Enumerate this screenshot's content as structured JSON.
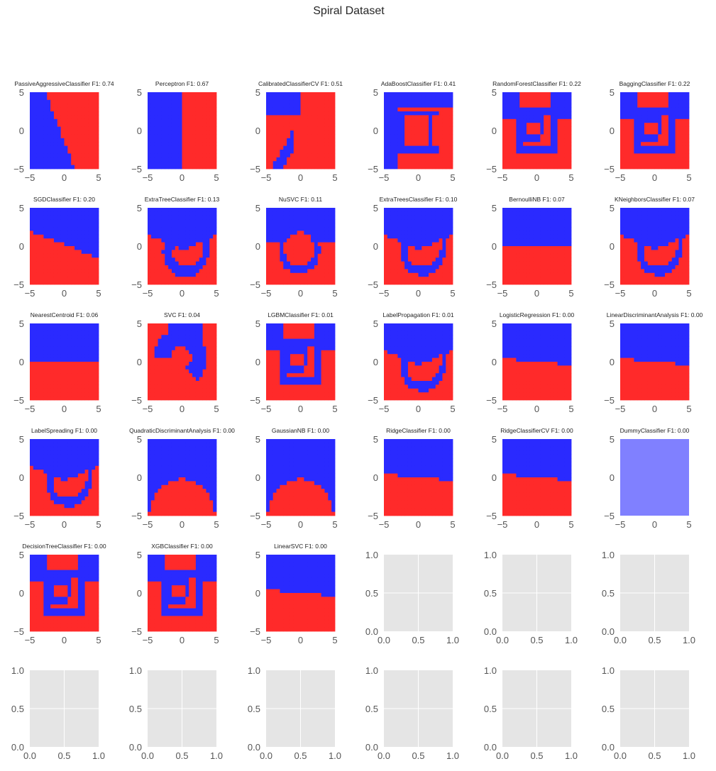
{
  "figure": {
    "title": "Spiral Dataset"
  },
  "colors": {
    "class_blue": "#2a2aff",
    "class_red": "#ff2a2a",
    "blend": "#8080ff",
    "empty_bg": "#e5e5e5",
    "grid": "#ffffff",
    "tick_text": "#555555",
    "title_text": "#222222"
  },
  "chart_data": [
    {
      "type": "heatmap",
      "title": "PassiveAggressiveClassifier F1: 0.74",
      "pattern": "diag_steep",
      "xticks": [
        "-5",
        "0",
        "5"
      ],
      "yticks": [
        "-5",
        "0",
        "5"
      ],
      "xlim": [
        -5,
        5
      ],
      "ylim": [
        -5,
        5
      ]
    },
    {
      "type": "heatmap",
      "title": "Perceptron F1: 0.67",
      "pattern": "vsplit",
      "xticks": [
        "-5",
        "0",
        "5"
      ],
      "yticks": [
        "-5",
        "0",
        "5"
      ],
      "xlim": [
        -5,
        5
      ],
      "ylim": [
        -5,
        5
      ]
    },
    {
      "type": "heatmap",
      "title": "CalibratedClassifierCV F1: 0.51",
      "pattern": "calibrated",
      "xticks": [
        "-5",
        "0",
        "5"
      ],
      "yticks": [
        "-5",
        "0",
        "5"
      ],
      "xlim": [
        -5,
        5
      ],
      "ylim": [
        -5,
        5
      ]
    },
    {
      "type": "heatmap",
      "title": "AdaBoostClassifier F1: 0.41",
      "pattern": "adaboost",
      "xticks": [
        "-5",
        "0",
        "5"
      ],
      "yticks": [
        "-5",
        "0",
        "5"
      ],
      "xlim": [
        -5,
        5
      ],
      "ylim": [
        -5,
        5
      ]
    },
    {
      "type": "heatmap",
      "title": "RandomForestClassifier F1: 0.22",
      "pattern": "blocky_spiral",
      "xticks": [
        "-5",
        "0",
        "5"
      ],
      "yticks": [
        "-5",
        "0",
        "5"
      ],
      "xlim": [
        -5,
        5
      ],
      "ylim": [
        -5,
        5
      ]
    },
    {
      "type": "heatmap",
      "title": "BaggingClassifier F1: 0.22",
      "pattern": "blocky_spiral",
      "xticks": [
        "-5",
        "0",
        "5"
      ],
      "yticks": [
        "-5",
        "0",
        "5"
      ],
      "xlim": [
        -5,
        5
      ],
      "ylim": [
        -5,
        5
      ]
    },
    {
      "type": "heatmap",
      "title": "SGDClassifier F1: 0.20",
      "pattern": "diag_shallow",
      "xticks": [
        "-5",
        "0",
        "5"
      ],
      "yticks": [
        "-5",
        "0",
        "5"
      ],
      "xlim": [
        -5,
        5
      ],
      "ylim": [
        -5,
        5
      ]
    },
    {
      "type": "heatmap",
      "title": "ExtraTreeClassifier F1: 0.13",
      "pattern": "spiral_rough",
      "xticks": [
        "-5",
        "0",
        "5"
      ],
      "yticks": [
        "-5",
        "0",
        "5"
      ],
      "xlim": [
        -5,
        5
      ],
      "ylim": [
        -5,
        5
      ]
    },
    {
      "type": "heatmap",
      "title": "NuSVC F1: 0.11",
      "pattern": "nusvc",
      "xticks": [
        "-5",
        "0",
        "5"
      ],
      "yticks": [
        "-5",
        "0",
        "5"
      ],
      "xlim": [
        -5,
        5
      ],
      "ylim": [
        -5,
        5
      ]
    },
    {
      "type": "heatmap",
      "title": "ExtraTreesClassifier F1: 0.10",
      "pattern": "spiral",
      "xticks": [
        "-5",
        "0",
        "5"
      ],
      "yticks": [
        "-5",
        "0",
        "5"
      ],
      "xlim": [
        -5,
        5
      ],
      "ylim": [
        -5,
        5
      ]
    },
    {
      "type": "heatmap",
      "title": "BernoulliNB F1: 0.07",
      "pattern": "hsplit",
      "xticks": [
        "-5",
        "0",
        "5"
      ],
      "yticks": [
        "-5",
        "0",
        "5"
      ],
      "xlim": [
        -5,
        5
      ],
      "ylim": [
        -5,
        5
      ]
    },
    {
      "type": "heatmap",
      "title": "KNeighborsClassifier F1: 0.07",
      "pattern": "spiral",
      "xticks": [
        "-5",
        "0",
        "5"
      ],
      "yticks": [
        "-5",
        "0",
        "5"
      ],
      "xlim": [
        -5,
        5
      ],
      "ylim": [
        -5,
        5
      ]
    },
    {
      "type": "heatmap",
      "title": "NearestCentroid F1: 0.06",
      "pattern": "hsplit",
      "xticks": [
        "-5",
        "0",
        "5"
      ],
      "yticks": [
        "-5",
        "0",
        "5"
      ],
      "xlim": [
        -5,
        5
      ],
      "ylim": [
        -5,
        5
      ]
    },
    {
      "type": "heatmap",
      "title": "SVC F1: 0.04",
      "pattern": "svc",
      "xticks": [
        "-5",
        "0",
        "5"
      ],
      "yticks": [
        "-5",
        "0",
        "5"
      ],
      "xlim": [
        -5,
        5
      ],
      "ylim": [
        -5,
        5
      ]
    },
    {
      "type": "heatmap",
      "title": "LGBMClassifier F1: 0.01",
      "pattern": "blocky_spiral",
      "xticks": [
        "-5",
        "0",
        "5"
      ],
      "yticks": [
        "-5",
        "0",
        "5"
      ],
      "xlim": [
        -5,
        5
      ],
      "ylim": [
        -5,
        5
      ]
    },
    {
      "type": "heatmap",
      "title": "LabelPropagation F1: 0.01",
      "pattern": "spiral",
      "xticks": [
        "-5",
        "0",
        "5"
      ],
      "yticks": [
        "-5",
        "0",
        "5"
      ],
      "xlim": [
        -5,
        5
      ],
      "ylim": [
        -5,
        5
      ]
    },
    {
      "type": "heatmap",
      "title": "LogisticRegression F1: 0.00",
      "pattern": "tilt",
      "xticks": [
        "-5",
        "0",
        "5"
      ],
      "yticks": [
        "-5",
        "0",
        "5"
      ],
      "xlim": [
        -5,
        5
      ],
      "ylim": [
        -5,
        5
      ]
    },
    {
      "type": "heatmap",
      "title": "LinearDiscriminantAnalysis F1: 0.00",
      "pattern": "tilt",
      "xticks": [
        "-5",
        "0",
        "5"
      ],
      "yticks": [
        "-5",
        "0",
        "5"
      ],
      "xlim": [
        -5,
        5
      ],
      "ylim": [
        -5,
        5
      ]
    },
    {
      "type": "heatmap",
      "title": "LabelSpreading F1: 0.00",
      "pattern": "spiral",
      "xticks": [
        "-5",
        "0",
        "5"
      ],
      "yticks": [
        "-5",
        "0",
        "5"
      ],
      "xlim": [
        -5,
        5
      ],
      "ylim": [
        -5,
        5
      ]
    },
    {
      "type": "heatmap",
      "title": "QuadraticDiscriminantAnalysis F1: 0.00",
      "pattern": "dome",
      "xticks": [
        "-5",
        "0",
        "5"
      ],
      "yticks": [
        "-5",
        "0",
        "5"
      ],
      "xlim": [
        -5,
        5
      ],
      "ylim": [
        -5,
        5
      ]
    },
    {
      "type": "heatmap",
      "title": "GaussianNB F1: 0.00",
      "pattern": "dome",
      "xticks": [
        "-5",
        "0",
        "5"
      ],
      "yticks": [
        "-5",
        "0",
        "5"
      ],
      "xlim": [
        -5,
        5
      ],
      "ylim": [
        -5,
        5
      ]
    },
    {
      "type": "heatmap",
      "title": "RidgeClassifier F1: 0.00",
      "pattern": "tilt",
      "xticks": [
        "-5",
        "0",
        "5"
      ],
      "yticks": [
        "-5",
        "0",
        "5"
      ],
      "xlim": [
        -5,
        5
      ],
      "ylim": [
        -5,
        5
      ]
    },
    {
      "type": "heatmap",
      "title": "RidgeClassifierCV F1: 0.00",
      "pattern": "tilt",
      "xticks": [
        "-5",
        "0",
        "5"
      ],
      "yticks": [
        "-5",
        "0",
        "5"
      ],
      "xlim": [
        -5,
        5
      ],
      "ylim": [
        -5,
        5
      ]
    },
    {
      "type": "heatmap",
      "title": "DummyClassifier F1: 0.00",
      "pattern": "uniform",
      "xticks": [
        "-5",
        "0",
        "5"
      ],
      "yticks": [
        "-5",
        "0",
        "5"
      ],
      "xlim": [
        -5,
        5
      ],
      "ylim": [
        -5,
        5
      ]
    },
    {
      "type": "heatmap",
      "title": "DecisionTreeClassifier F1: 0.00",
      "pattern": "blocky_spiral",
      "xticks": [
        "-5",
        "0",
        "5"
      ],
      "yticks": [
        "-5",
        "0",
        "5"
      ],
      "xlim": [
        -5,
        5
      ],
      "ylim": [
        -5,
        5
      ]
    },
    {
      "type": "heatmap",
      "title": "XGBClassifier F1: 0.00",
      "pattern": "blocky_spiral",
      "xticks": [
        "-5",
        "0",
        "5"
      ],
      "yticks": [
        "-5",
        "0",
        "5"
      ],
      "xlim": [
        -5,
        5
      ],
      "ylim": [
        -5,
        5
      ]
    },
    {
      "type": "heatmap",
      "title": "LinearSVC F1: 0.00",
      "pattern": "tilt",
      "xticks": [
        "-5",
        "0",
        "5"
      ],
      "yticks": [
        "-5",
        "0",
        "5"
      ],
      "xlim": [
        -5,
        5
      ],
      "ylim": [
        -5,
        5
      ]
    },
    {
      "type": "empty",
      "title": "",
      "xticks": [
        "0.0",
        "0.5",
        "1.0"
      ],
      "yticks": [
        "0.0",
        "0.5",
        "1.0"
      ],
      "xlim": [
        0,
        1
      ],
      "ylim": [
        0,
        1
      ]
    },
    {
      "type": "empty",
      "title": "",
      "xticks": [
        "0.0",
        "0.5",
        "1.0"
      ],
      "yticks": [
        "0.0",
        "0.5",
        "1.0"
      ],
      "xlim": [
        0,
        1
      ],
      "ylim": [
        0,
        1
      ]
    },
    {
      "type": "empty",
      "title": "",
      "xticks": [
        "0.0",
        "0.5",
        "1.0"
      ],
      "yticks": [
        "0.0",
        "0.5",
        "1.0"
      ],
      "xlim": [
        0,
        1
      ],
      "ylim": [
        0,
        1
      ]
    },
    {
      "type": "empty",
      "title": "",
      "xticks": [
        "0.0",
        "0.5",
        "1.0"
      ],
      "yticks": [
        "0.0",
        "0.5",
        "1.0"
      ],
      "xlim": [
        0,
        1
      ],
      "ylim": [
        0,
        1
      ]
    },
    {
      "type": "empty",
      "title": "",
      "xticks": [
        "0.0",
        "0.5",
        "1.0"
      ],
      "yticks": [
        "0.0",
        "0.5",
        "1.0"
      ],
      "xlim": [
        0,
        1
      ],
      "ylim": [
        0,
        1
      ]
    },
    {
      "type": "empty",
      "title": "",
      "xticks": [
        "0.0",
        "0.5",
        "1.0"
      ],
      "yticks": [
        "0.0",
        "0.5",
        "1.0"
      ],
      "xlim": [
        0,
        1
      ],
      "ylim": [
        0,
        1
      ]
    },
    {
      "type": "empty",
      "title": "",
      "xticks": [
        "0.0",
        "0.5",
        "1.0"
      ],
      "yticks": [
        "0.0",
        "0.5",
        "1.0"
      ],
      "xlim": [
        0,
        1
      ],
      "ylim": [
        0,
        1
      ]
    },
    {
      "type": "empty",
      "title": "",
      "xticks": [
        "0.0",
        "0.5",
        "1.0"
      ],
      "yticks": [
        "0.0",
        "0.5",
        "1.0"
      ],
      "xlim": [
        0,
        1
      ],
      "ylim": [
        0,
        1
      ]
    },
    {
      "type": "empty",
      "title": "",
      "xticks": [
        "0.0",
        "0.5",
        "1.0"
      ],
      "yticks": [
        "0.0",
        "0.5",
        "1.0"
      ],
      "xlim": [
        0,
        1
      ],
      "ylim": [
        0,
        1
      ]
    }
  ]
}
